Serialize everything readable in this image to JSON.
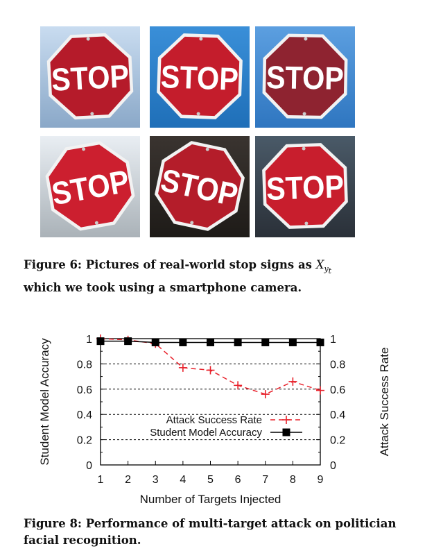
{
  "photo_grid": {
    "sign_text": "STOP",
    "rows": [
      [
        {
          "bg_top": "#c9dcf0",
          "bg_bottom": "#8aa8c8",
          "sign": "#b51b2a",
          "rotate": -3
        },
        {
          "bg_top": "#3a8fd8",
          "bg_bottom": "#1f6fb8",
          "sign": "#c41d2c",
          "rotate": 2
        },
        {
          "bg_top": "#5c9fe0",
          "bg_bottom": "#2f76c0",
          "sign": "#8e2330",
          "rotate": 1
        }
      ],
      [
        {
          "bg_top": "#e9eef3",
          "bg_bottom": "#aab2b8",
          "sign": "#cc1f2f",
          "rotate": -10
        },
        {
          "bg_top": "#3a3430",
          "bg_bottom": "#1e1b18",
          "sign": "#b41d2a",
          "rotate": 12
        },
        {
          "bg_top": "#4a5a68",
          "bg_bottom": "#2a3038",
          "sign": "#c81e2d",
          "rotate": -2
        }
      ]
    ]
  },
  "figure6": {
    "label": "Figure 6: Pictures of real-world stop signs as",
    "math_main": "X",
    "math_sub": "y",
    "math_subsub": "t",
    "line2": "which we took using a smartphone camera."
  },
  "chart_data": {
    "type": "line",
    "xlabel": "Number of Targets Injected",
    "ylabel": "Student Model Accuracy",
    "y2label": "Attack Success Rate",
    "x": [
      1,
      2,
      3,
      4,
      5,
      6,
      7,
      8,
      9
    ],
    "xlim": [
      1,
      9
    ],
    "ylim": [
      0,
      1
    ],
    "y2lim": [
      0,
      1
    ],
    "yticks": [
      "0",
      "0.2",
      "0.4",
      "0.6",
      "0.8",
      "1"
    ],
    "y2ticks": [
      "0",
      "0.2",
      "0.4",
      "0.6",
      "0.8",
      "1"
    ],
    "xticks": [
      "1",
      "2",
      "3",
      "4",
      "5",
      "6",
      "7",
      "8",
      "9"
    ],
    "grid": "horizontal dashed",
    "legend_position": "center-right",
    "series": [
      {
        "name": "Attack Success Rate",
        "style": "dashed",
        "marker": "plus",
        "color": "#e8202a",
        "values": [
          1.0,
          0.99,
          0.96,
          0.77,
          0.75,
          0.63,
          0.56,
          0.66,
          0.59
        ]
      },
      {
        "name": "Student Model Accuracy",
        "style": "solid",
        "marker": "square",
        "color": "#000000",
        "values": [
          0.98,
          0.98,
          0.97,
          0.97,
          0.97,
          0.97,
          0.97,
          0.97,
          0.97
        ]
      }
    ]
  },
  "figure8": {
    "line1": "Figure 8: Performance of multi-target attack on politician",
    "line2": "facial recognition."
  }
}
